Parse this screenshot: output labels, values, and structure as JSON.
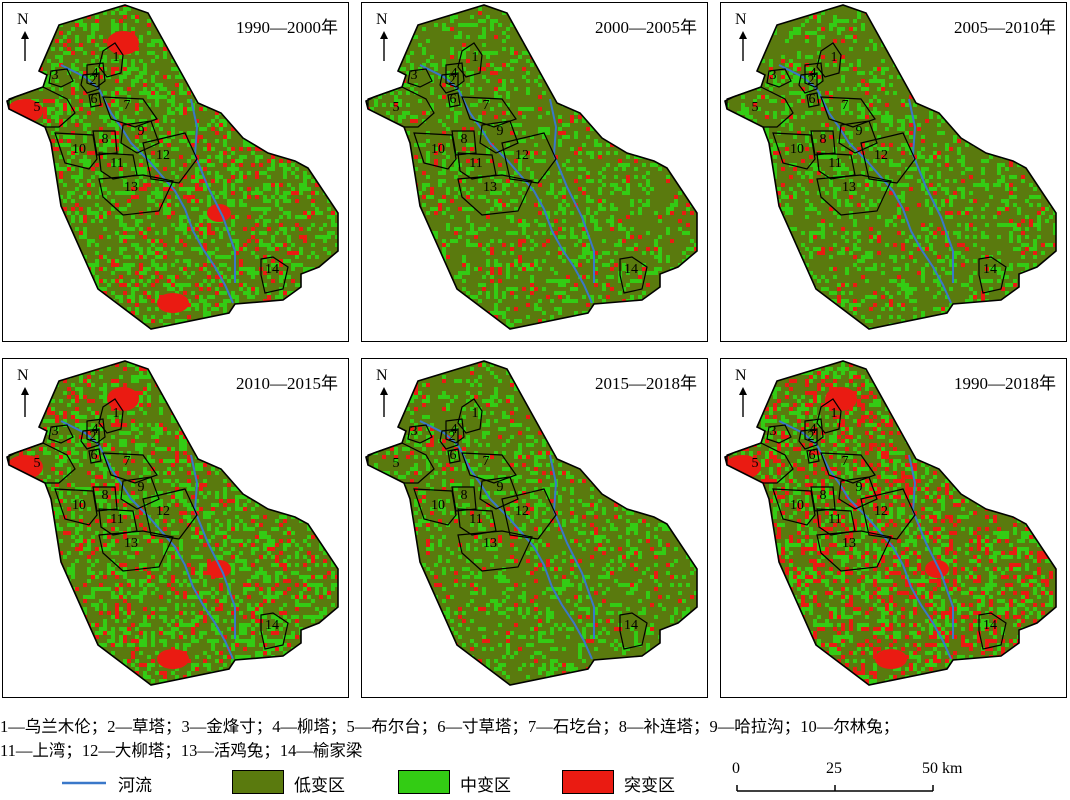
{
  "panels": [
    {
      "period": "1990—2000年",
      "north": "N",
      "high": "medium"
    },
    {
      "period": "2000—2005年",
      "north": "N",
      "high": "low"
    },
    {
      "period": "2005—2010年",
      "north": "N",
      "high": "low"
    },
    {
      "period": "2010—2015年",
      "north": "N",
      "high": "medium"
    },
    {
      "period": "2015—2018年",
      "north": "N",
      "high": "low"
    },
    {
      "period": "1990—2018年",
      "north": "N",
      "high": "high"
    }
  ],
  "region_numbers": [
    "1",
    "2",
    "3",
    "4",
    "5",
    "6",
    "7",
    "8",
    "9",
    "10",
    "11",
    "12",
    "13",
    "14"
  ],
  "caption": {
    "line1": "1—乌兰木伦；2—草塔；3—金烽寸；4—柳塔；5—布尔台；6—寸草塔；7—石圪台；8—补连塔；9—哈拉沟；10—尔林兔；",
    "line2": "11—上湾；12—大柳塔；13—活鸡兔；14—榆家梁"
  },
  "legend": {
    "river": {
      "label": "河流",
      "color": "#3a78c9"
    },
    "low": {
      "label": "低变区",
      "color": "#5a7a0e"
    },
    "medium": {
      "label": "中变区",
      "color": "#33cc14"
    },
    "abrupt": {
      "label": "突变区",
      "color": "#ea1b12"
    }
  },
  "scale": {
    "ticks": [
      "0",
      "25",
      "50 km"
    ]
  }
}
